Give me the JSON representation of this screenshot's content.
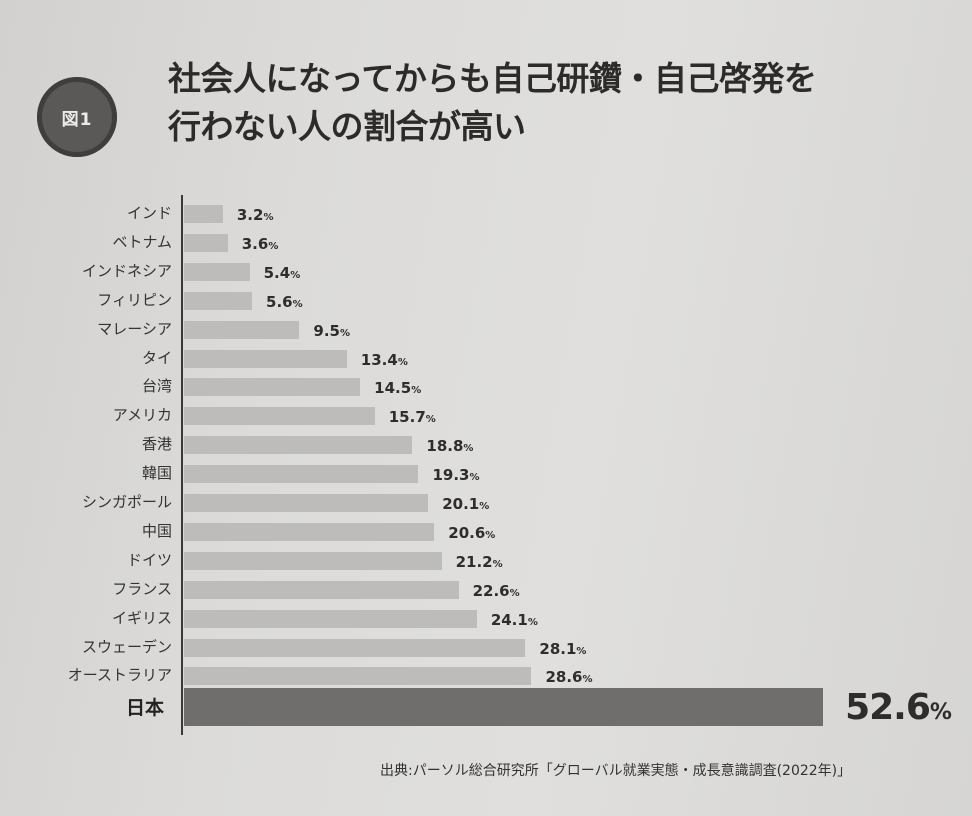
{
  "badge": {
    "label": "図1"
  },
  "title": {
    "line1": "社会人になってからも自己研鑽・自己啓発を",
    "line2": "行わない人の割合が高い"
  },
  "colors": {
    "background": "#dcdbd9",
    "bar": "#bdbcba",
    "bar_highlight": "#6f6e6c",
    "badge": "#5a5958"
  },
  "chart_data": {
    "type": "bar",
    "orientation": "horizontal",
    "title": "社会人になってからも自己研鑽・自己啓発を行わない人の割合が高い",
    "xlabel": "",
    "ylabel": "",
    "unit": "%",
    "categories": [
      "インド",
      "ベトナム",
      "インドネシア",
      "フィリピン",
      "マレーシア",
      "タイ",
      "台湾",
      "アメリカ",
      "香港",
      "韓国",
      "シンガポール",
      "中国",
      "ドイツ",
      "フランス",
      "イギリス",
      "スウェーデン",
      "オーストラリア",
      "日本"
    ],
    "values": [
      3.2,
      3.6,
      5.4,
      5.6,
      9.5,
      13.4,
      14.5,
      15.7,
      18.8,
      19.3,
      20.1,
      20.6,
      21.2,
      22.6,
      24.1,
      28.1,
      28.6,
      52.6
    ],
    "value_labels": [
      "3.2",
      "3.6",
      "5.4",
      "5.6",
      "9.5",
      "13.4",
      "14.5",
      "15.7",
      "18.8",
      "19.3",
      "20.1",
      "20.6",
      "21.2",
      "22.6",
      "24.1",
      "28.1",
      "28.6",
      "52.6"
    ],
    "highlight": "日本",
    "grid": false,
    "legend": "none",
    "source": "出典:パーソル総合研究所「グローバル就業実態・成長意識調査(2022年)」"
  },
  "source": "出典:パーソル総合研究所「グローバル就業実態・成長意識調査(2022年)」"
}
